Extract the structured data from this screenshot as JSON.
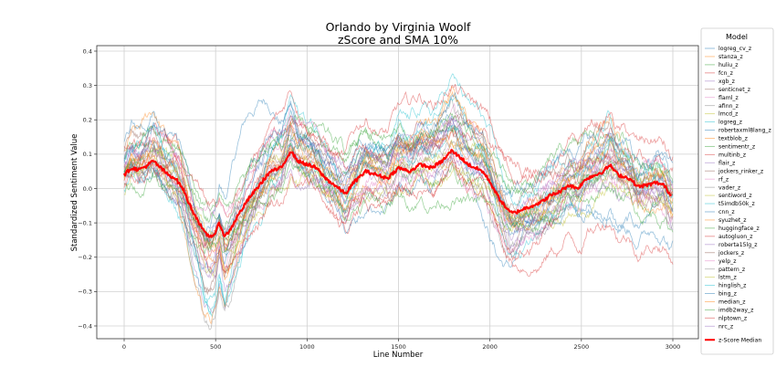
{
  "chart_data": {
    "type": "line",
    "title": "Orlando by Virginia Woolf",
    "subtitle": "zScore and SMA 10%",
    "xlabel": "Line Number",
    "ylabel": "Standardized Sentiment Value",
    "xlim": [
      -150,
      3150
    ],
    "ylim": [
      -0.44,
      0.415
    ],
    "xticks": [
      0,
      500,
      1000,
      1500,
      2000,
      2500,
      3000
    ],
    "xtick_labels": [
      "0",
      "500",
      "1000",
      "1500",
      "2000",
      "2500",
      "3000"
    ],
    "yticks": [
      0.4,
      0.3,
      0.2,
      0.1,
      0.0,
      -0.1,
      -0.2,
      -0.3,
      -0.4
    ],
    "ytick_labels": [
      "0.4",
      "0.3",
      "0.2",
      "0.1",
      "0.0",
      "−0.1",
      "−0.2",
      "−0.3",
      "−0.4"
    ],
    "grid": true,
    "legend": {
      "title": "Model",
      "placement": "outside-right",
      "entries": [
        {
          "name": "logreg_cv_z",
          "color": "#1f77b4"
        },
        {
          "name": "stanza_z",
          "color": "#ff7f0e"
        },
        {
          "name": "huliu_z",
          "color": "#2ca02c"
        },
        {
          "name": "fcn_z",
          "color": "#d62728"
        },
        {
          "name": "xgb_z",
          "color": "#9467bd"
        },
        {
          "name": "senticnet_z",
          "color": "#8c564b"
        },
        {
          "name": "flaml_z",
          "color": "#e377c2"
        },
        {
          "name": "afinn_z",
          "color": "#7f7f7f"
        },
        {
          "name": "lmcd_z",
          "color": "#bcbd22"
        },
        {
          "name": "logreg_z",
          "color": "#17becf"
        },
        {
          "name": "robertaxml8lang_z",
          "color": "#1f77b4"
        },
        {
          "name": "textblob_z",
          "color": "#ff7f0e"
        },
        {
          "name": "sentimentr_z",
          "color": "#2ca02c"
        },
        {
          "name": "multinb_z",
          "color": "#d62728"
        },
        {
          "name": "flair_z",
          "color": "#9467bd"
        },
        {
          "name": "jockers_rinker_z",
          "color": "#8c564b"
        },
        {
          "name": "rf_z",
          "color": "#e377c2"
        },
        {
          "name": "vader_z",
          "color": "#7f7f7f"
        },
        {
          "name": "sentiword_z",
          "color": "#bcbd22"
        },
        {
          "name": "t5imdb50k_z",
          "color": "#17becf"
        },
        {
          "name": "cnn_z",
          "color": "#1f77b4"
        },
        {
          "name": "syuzhet_z",
          "color": "#ff7f0e"
        },
        {
          "name": "huggingface_z",
          "color": "#2ca02c"
        },
        {
          "name": "autogluon_z",
          "color": "#d62728"
        },
        {
          "name": "roberta15lg_z",
          "color": "#9467bd"
        },
        {
          "name": "jockers_z",
          "color": "#8c564b"
        },
        {
          "name": "yelp_z",
          "color": "#e377c2"
        },
        {
          "name": "pattern_z",
          "color": "#7f7f7f"
        },
        {
          "name": "lstm_z",
          "color": "#bcbd22"
        },
        {
          "name": "hinglish_z",
          "color": "#17becf"
        },
        {
          "name": "bing_z",
          "color": "#1f77b4"
        },
        {
          "name": "median_z",
          "color": "#ff7f0e"
        },
        {
          "name": "imdb2way_z",
          "color": "#2ca02c"
        },
        {
          "name": "nlptown_z",
          "color": "#d62728"
        },
        {
          "name": "nrc_z",
          "color": "#9467bd"
        },
        {
          "name": "z-Score Median",
          "color": "#ff0000",
          "bold": true
        }
      ]
    },
    "series_note": "Individual model series are approximate (unreadable individually); all fluctuate around the median with spread of roughly ±0.15.",
    "median_series": {
      "name": "z-Score Median",
      "color": "#ff0000",
      "x": [
        0,
        40,
        80,
        120,
        160,
        200,
        240,
        280,
        320,
        360,
        400,
        440,
        470,
        500,
        520,
        550,
        580,
        620,
        680,
        740,
        800,
        860,
        910,
        950,
        1000,
        1050,
        1100,
        1150,
        1210,
        1260,
        1320,
        1380,
        1440,
        1500,
        1560,
        1620,
        1680,
        1740,
        1790,
        1840,
        1880,
        1920,
        1960,
        2000,
        2040,
        2080,
        2110,
        2140,
        2180,
        2230,
        2280,
        2330,
        2380,
        2430,
        2480,
        2530,
        2580,
        2620,
        2656,
        2700,
        2760,
        2810,
        2860,
        2910,
        2950,
        2990
      ],
      "y": [
        0.04,
        0.06,
        0.055,
        0.065,
        0.08,
        0.06,
        0.04,
        0.03,
        0.0,
        -0.05,
        -0.09,
        -0.13,
        -0.14,
        -0.13,
        -0.1,
        -0.14,
        -0.12,
        -0.08,
        -0.03,
        0.01,
        0.05,
        0.06,
        0.11,
        0.08,
        0.07,
        0.06,
        0.03,
        0.01,
        -0.015,
        0.02,
        0.05,
        0.04,
        0.03,
        0.06,
        0.05,
        0.07,
        0.06,
        0.08,
        0.11,
        0.09,
        0.07,
        0.06,
        0.05,
        0.02,
        -0.02,
        -0.05,
        -0.07,
        -0.07,
        -0.06,
        -0.05,
        -0.04,
        -0.02,
        -0.01,
        0.01,
        0.0,
        0.03,
        0.04,
        0.05,
        0.068,
        0.04,
        0.03,
        0.005,
        0.01,
        0.017,
        0.01,
        -0.02
      ]
    }
  }
}
